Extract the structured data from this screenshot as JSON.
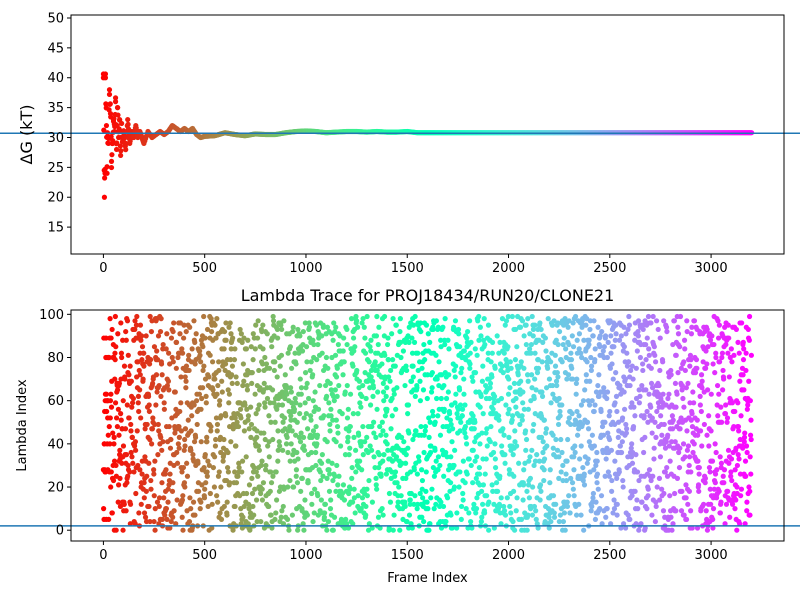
{
  "chart_data": [
    {
      "type": "scatter",
      "title": "",
      "xlabel": "",
      "ylabel": "ΔG (kT)",
      "xlim": [
        -160,
        3360
      ],
      "ylim": [
        10.5,
        50.5
      ],
      "x_ticks": [
        0,
        500,
        1000,
        1500,
        2000,
        2500,
        3000
      ],
      "y_ticks": [
        15,
        20,
        25,
        30,
        35,
        40,
        45,
        50
      ],
      "reference_line": 30.7,
      "reference_color": "#1f77b4",
      "colormap": "rainbow",
      "frame_range": [
        0,
        3200
      ],
      "samples": [
        [
          0,
          40
        ],
        [
          5,
          20
        ],
        [
          8,
          24
        ],
        [
          10,
          40
        ],
        [
          15,
          32
        ],
        [
          18,
          24
        ],
        [
          20,
          30
        ],
        [
          25,
          29
        ],
        [
          30,
          38
        ],
        [
          35,
          34
        ],
        [
          40,
          26
        ],
        [
          45,
          29
        ],
        [
          50,
          33
        ],
        [
          55,
          31
        ],
        [
          60,
          36
        ],
        [
          65,
          28
        ],
        [
          70,
          35
        ],
        [
          75,
          30
        ],
        [
          80,
          33
        ],
        [
          85,
          27
        ],
        [
          90,
          32
        ],
        [
          95,
          29
        ],
        [
          100,
          31
        ],
        [
          110,
          28
        ],
        [
          120,
          33
        ],
        [
          130,
          29
        ],
        [
          140,
          31
        ],
        [
          150,
          30
        ],
        [
          160,
          32
        ],
        [
          170,
          30
        ],
        [
          180,
          31
        ],
        [
          200,
          29
        ],
        [
          220,
          31
        ],
        [
          240,
          30
        ],
        [
          260,
          30.5
        ],
        [
          280,
          31
        ],
        [
          300,
          30.5
        ],
        [
          320,
          31
        ],
        [
          340,
          32
        ],
        [
          360,
          31.5
        ],
        [
          380,
          31
        ],
        [
          400,
          31.5
        ],
        [
          420,
          31
        ],
        [
          440,
          31.5
        ],
        [
          460,
          30.5
        ],
        [
          480,
          30
        ],
        [
          500,
          30.2
        ],
        [
          550,
          30.3
        ],
        [
          600,
          30.8
        ],
        [
          650,
          30.5
        ],
        [
          700,
          30.3
        ],
        [
          750,
          30.6
        ],
        [
          800,
          30.5
        ],
        [
          850,
          30.5
        ],
        [
          900,
          30.8
        ],
        [
          950,
          31
        ],
        [
          1000,
          31.1
        ],
        [
          1050,
          31
        ],
        [
          1100,
          30.8
        ],
        [
          1150,
          30.9
        ],
        [
          1200,
          31
        ],
        [
          1250,
          31
        ],
        [
          1300,
          30.9
        ],
        [
          1350,
          31
        ],
        [
          1400,
          30.9
        ],
        [
          1450,
          30.9
        ],
        [
          1500,
          31
        ],
        [
          1550,
          30.8
        ],
        [
          1600,
          30.8
        ],
        [
          1700,
          30.8
        ],
        [
          1800,
          30.8
        ],
        [
          1900,
          30.8
        ],
        [
          2000,
          30.8
        ],
        [
          2200,
          30.8
        ],
        [
          2400,
          30.8
        ],
        [
          2600,
          30.8
        ],
        [
          2800,
          30.8
        ],
        [
          3000,
          30.8
        ],
        [
          3200,
          30.8
        ]
      ]
    },
    {
      "type": "scatter",
      "title": "Lambda Trace for PROJ18434/RUN20/CLONE21",
      "xlabel": "Frame Index",
      "ylabel": "Lambda Index",
      "xlim": [
        -160,
        3360
      ],
      "ylim": [
        -5,
        102
      ],
      "x_ticks": [
        0,
        500,
        1000,
        1500,
        2000,
        2500,
        3000
      ],
      "y_ticks": [
        0,
        20,
        40,
        60,
        80,
        100
      ],
      "reference_line": 2,
      "reference_color": "#1f77b4",
      "colormap": "rainbow",
      "frame_range": [
        0,
        3200
      ],
      "point_count": 3200,
      "lambda_range": [
        0,
        99
      ],
      "note_early_frames": "frames near 0 concentrated at lambda 5-98"
    }
  ]
}
